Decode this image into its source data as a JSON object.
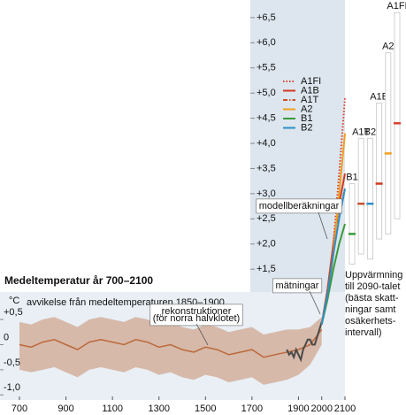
{
  "chart_data": {
    "type": "line",
    "title": "Medeltemperatur år 700–2100",
    "y_unit": "°C",
    "subtitle": "avvikelse från medeltemperaturen 1850–1900",
    "xlim": [
      700,
      2100
    ],
    "xticks": [
      700,
      900,
      1100,
      1300,
      1500,
      1700,
      1900,
      2000,
      2100
    ],
    "ylim": [
      -1.1,
      6.85
    ],
    "yticks": [
      {
        "value": -1.0,
        "label": "-1,0"
      },
      {
        "value": -0.5,
        "label": "-0,5"
      },
      0,
      {
        "value": 0.5,
        "label": "+0,5"
      },
      {
        "value": 1.5,
        "label": "+1,5"
      },
      {
        "value": 2.0,
        "label": "+2,0"
      },
      {
        "value": 2.5,
        "label": "+2,5"
      },
      {
        "value": 3.0,
        "label": "+3,0"
      },
      {
        "value": 3.5,
        "label": "+3,5"
      },
      {
        "value": 4.0,
        "label": "+4,0"
      },
      {
        "value": 4.5,
        "label": "+4,5"
      },
      {
        "value": 5.0,
        "label": "+5,0"
      },
      {
        "value": 5.5,
        "label": "+5,5"
      },
      {
        "value": 6.0,
        "label": "+6,0"
      },
      {
        "value": 6.5,
        "label": "+6,5"
      }
    ],
    "reconstruction": {
      "label": [
        "rekonstruktioner",
        "(för norra halvklotet)"
      ],
      "color": "#b5551e",
      "x": [
        700,
        750,
        800,
        850,
        900,
        950,
        1000,
        1050,
        1100,
        1150,
        1200,
        1250,
        1300,
        1350,
        1400,
        1450,
        1500,
        1550,
        1600,
        1650,
        1700,
        1750,
        1800,
        1850,
        1900,
        1950,
        2000
      ],
      "values": [
        0.0,
        -0.05,
        0.05,
        0.1,
        0.0,
        -0.1,
        0.05,
        0.1,
        0.05,
        0.0,
        0.1,
        0.05,
        -0.05,
        0.0,
        -0.1,
        -0.15,
        -0.05,
        -0.1,
        -0.2,
        -0.15,
        -0.1,
        -0.25,
        -0.2,
        -0.15,
        -0.1,
        0.0,
        0.3
      ],
      "low": [
        -0.5,
        -0.55,
        -0.5,
        -0.45,
        -0.55,
        -0.65,
        -0.5,
        -0.45,
        -0.5,
        -0.55,
        -0.45,
        -0.5,
        -0.6,
        -0.55,
        -0.65,
        -0.7,
        -0.6,
        -0.65,
        -0.75,
        -0.7,
        -0.65,
        -0.8,
        -0.75,
        -0.7,
        -0.6,
        -0.4,
        0.0
      ],
      "high": [
        0.45,
        0.4,
        0.5,
        0.55,
        0.45,
        0.35,
        0.5,
        0.55,
        0.5,
        0.45,
        0.55,
        0.5,
        0.4,
        0.45,
        0.35,
        0.3,
        0.4,
        0.35,
        0.25,
        0.3,
        0.35,
        0.2,
        0.25,
        0.3,
        0.3,
        0.35,
        0.55
      ]
    },
    "observations": {
      "label": "mätningar",
      "color": "#4a4a4a",
      "x": [
        1850,
        1860,
        1870,
        1880,
        1890,
        1900,
        1910,
        1920,
        1930,
        1940,
        1950,
        1960,
        1970,
        1980,
        1990,
        2000
      ],
      "values": [
        -0.1,
        -0.2,
        -0.15,
        -0.25,
        -0.1,
        -0.2,
        -0.3,
        -0.1,
        0.0,
        0.1,
        0.1,
        0.0,
        0.0,
        0.15,
        0.3,
        0.45
      ]
    },
    "model_label": "modellberäkningar",
    "series": [
      {
        "name": "A1FI",
        "color": "#d9412b",
        "dash": "dotted",
        "x": [
          2000,
          2025,
          2050,
          2075,
          2100
        ],
        "values": [
          0.4,
          1.0,
          2.0,
          3.4,
          4.9
        ]
      },
      {
        "name": "A1B",
        "color": "#d03a20",
        "dash": "solid",
        "x": [
          2000,
          2025,
          2050,
          2075,
          2100
        ],
        "values": [
          0.4,
          1.1,
          2.0,
          2.8,
          3.4
        ]
      },
      {
        "name": "A1T",
        "color": "#c8502a",
        "dash": "dashdot",
        "x": [
          2000,
          2025,
          2050,
          2075,
          2100
        ],
        "values": [
          0.4,
          1.1,
          2.0,
          2.6,
          3.1
        ]
      },
      {
        "name": "A2",
        "color": "#f0a020",
        "dash": "solid",
        "x": [
          2000,
          2025,
          2050,
          2075,
          2100
        ],
        "values": [
          0.4,
          0.9,
          1.8,
          3.0,
          4.2
        ]
      },
      {
        "name": "B1",
        "color": "#3c9a3c",
        "dash": "solid",
        "x": [
          2000,
          2025,
          2050,
          2075,
          2100
        ],
        "values": [
          0.4,
          0.9,
          1.5,
          2.0,
          2.4
        ]
      },
      {
        "name": "B2",
        "color": "#2c8fc8",
        "dash": "solid",
        "x": [
          2000,
          2025,
          2050,
          2075,
          2100
        ],
        "values": [
          0.4,
          1.0,
          1.8,
          2.5,
          3.1
        ]
      }
    ],
    "ranges": [
      {
        "name": "B1",
        "low": 1.6,
        "high": 3.2,
        "best": 2.2,
        "color": "#3c9a3c"
      },
      {
        "name": "A1T",
        "low": 1.8,
        "high": 4.1,
        "best": 2.8,
        "color": "#c8502a"
      },
      {
        "name": "B2",
        "low": 1.7,
        "high": 4.1,
        "best": 2.8,
        "color": "#2c8fc8"
      },
      {
        "name": "A1B",
        "low": 2.1,
        "high": 4.8,
        "best": 3.2,
        "color": "#d03a20"
      },
      {
        "name": "A2",
        "low": 2.2,
        "high": 5.8,
        "best": 3.8,
        "color": "#f0a020"
      },
      {
        "name": "A1FI",
        "low": 2.5,
        "high": 6.6,
        "best": 4.4,
        "color": "#d9412b"
      }
    ],
    "range_note": [
      "Uppvärmning",
      "till 2090-talet",
      "(bästa skatt-",
      "ningar samt",
      "osäkerhets-",
      "intervall)"
    ]
  }
}
